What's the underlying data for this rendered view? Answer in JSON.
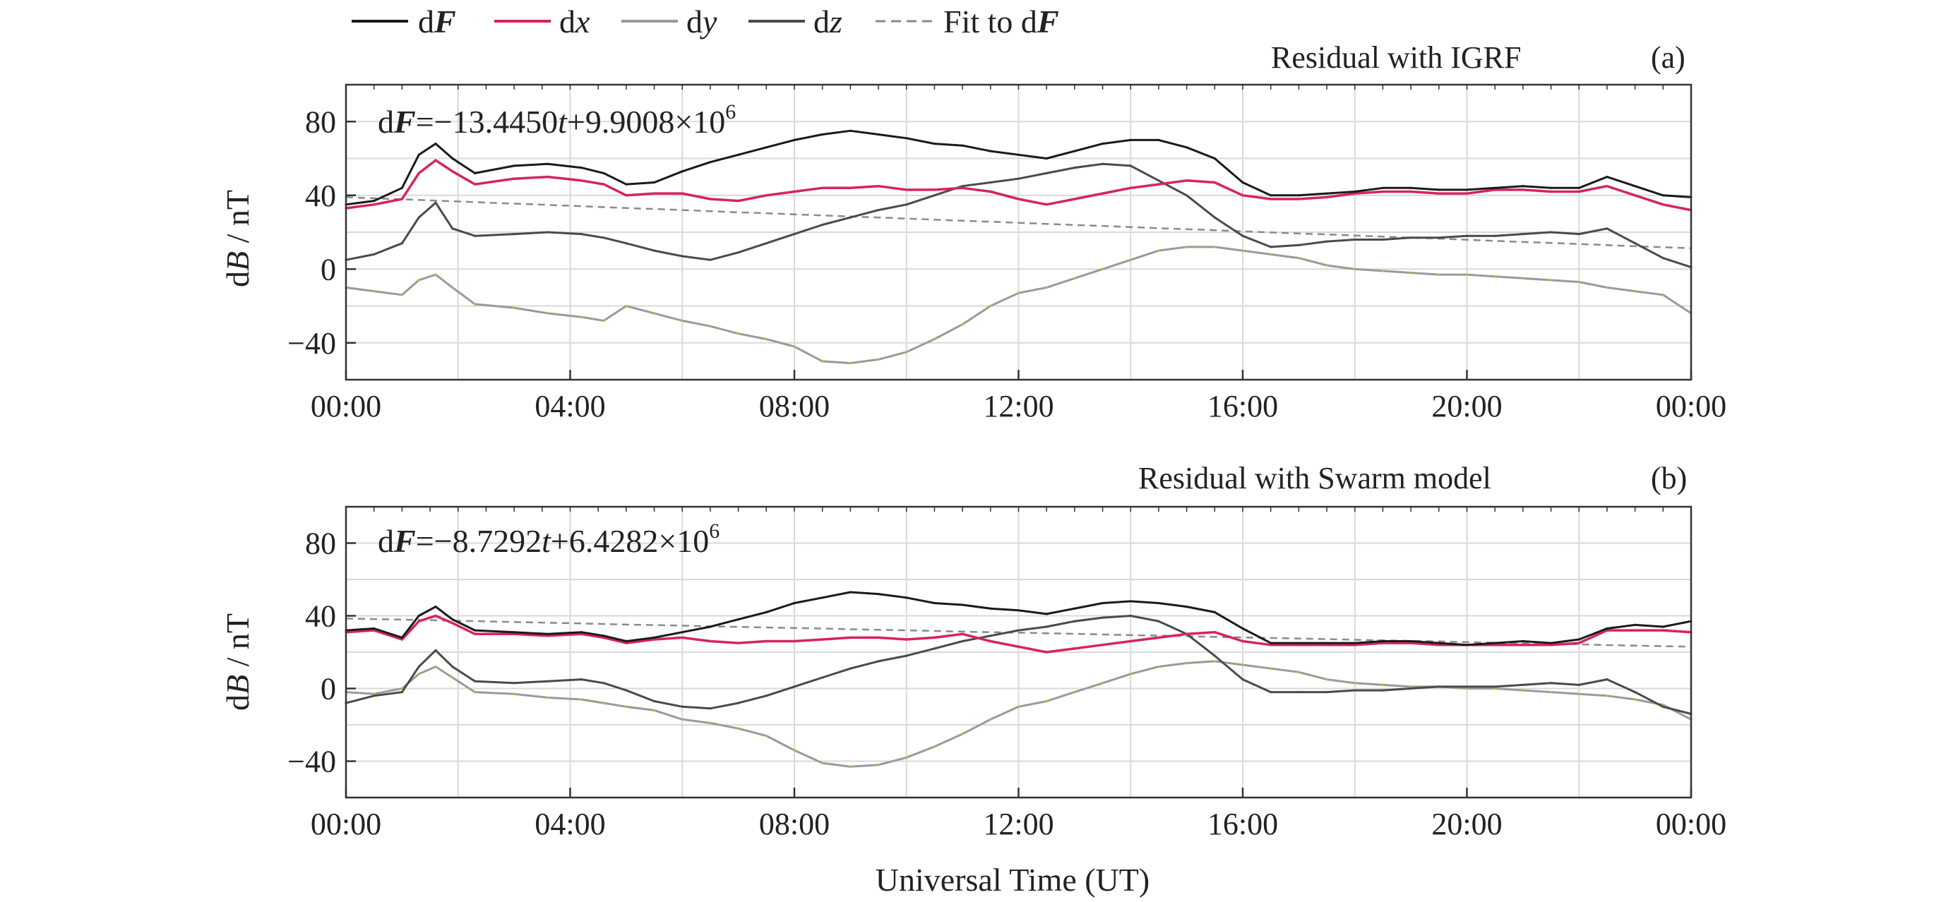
{
  "legend": {
    "dF": {
      "prefix": "d",
      "sym": "F"
    },
    "dx": {
      "prefix": "d",
      "sym": "x"
    },
    "dy": {
      "prefix": "d",
      "sym": "y"
    },
    "dz": {
      "prefix": "d",
      "sym": "z"
    },
    "fit": {
      "prefix": "Fit to d",
      "sym": "F"
    }
  },
  "colors": {
    "dF": "#1a1a1a",
    "dx": "#d6245e",
    "dy": "#9a9a9a",
    "dy_accent": "#b5bd2e",
    "dz": "#4a4a4a",
    "fit": "#8a8a8a",
    "grid": "#d9d9d9",
    "axis": "#333333"
  },
  "chart_data": [
    {
      "type": "line",
      "panel_label": "(a)",
      "title": "Residual with IGRF",
      "ylabel": {
        "prefix": "d",
        "sym": "B",
        "suffix": " / nT"
      },
      "xticks": [
        "00:00",
        "04:00",
        "08:00",
        "12:00",
        "16:00",
        "20:00",
        "00:00"
      ],
      "yticks": [
        -40,
        0,
        40,
        80
      ],
      "xlim": [
        0,
        24
      ],
      "ylim": [
        -60,
        100
      ],
      "equation": {
        "lhs_prefix": "d",
        "lhs_sym": "F",
        "op": "=",
        "c1": "−13.4450",
        "var": "t",
        "c2": "+9.9008×10",
        "exp": "6"
      },
      "x": [
        0,
        0.5,
        1.0,
        1.3,
        1.6,
        1.9,
        2.3,
        3.0,
        3.6,
        4.2,
        4.6,
        5.0,
        5.5,
        6.0,
        6.5,
        7.0,
        7.5,
        8.0,
        8.5,
        9.0,
        9.5,
        10.0,
        10.5,
        11.0,
        11.5,
        12.0,
        12.5,
        13.0,
        13.5,
        14.0,
        14.5,
        15.0,
        15.5,
        16.0,
        16.5,
        17.0,
        17.5,
        18.0,
        18.5,
        19.0,
        19.5,
        20.0,
        20.5,
        21.0,
        21.5,
        22.0,
        22.5,
        23.0,
        23.5,
        24.0
      ],
      "series": [
        {
          "key": "dF",
          "values": [
            35,
            37,
            44,
            62,
            68,
            60,
            52,
            56,
            57,
            55,
            52,
            46,
            47,
            53,
            58,
            62,
            66,
            70,
            73,
            75,
            73,
            71,
            68,
            67,
            64,
            62,
            60,
            64,
            68,
            70,
            70,
            66,
            60,
            47,
            40,
            40,
            41,
            42,
            44,
            44,
            43,
            43,
            44,
            45,
            44,
            44,
            50,
            45,
            40,
            39
          ]
        },
        {
          "key": "dx",
          "values": [
            33,
            35,
            38,
            52,
            59,
            53,
            46,
            49,
            50,
            48,
            46,
            40,
            41,
            41,
            38,
            37,
            40,
            42,
            44,
            44,
            45,
            43,
            43,
            44,
            42,
            38,
            35,
            38,
            41,
            44,
            46,
            48,
            47,
            40,
            38,
            38,
            39,
            41,
            42,
            42,
            41,
            41,
            43,
            43,
            42,
            42,
            45,
            40,
            35,
            32
          ]
        },
        {
          "key": "dy",
          "values": [
            -10,
            -12,
            -14,
            -6,
            -3,
            -10,
            -19,
            -21,
            -24,
            -26,
            -28,
            -20,
            -24,
            -28,
            -31,
            -35,
            -38,
            -42,
            -50,
            -51,
            -49,
            -45,
            -38,
            -30,
            -20,
            -13,
            -10,
            -5,
            0,
            5,
            10,
            12,
            12,
            10,
            8,
            6,
            2,
            0,
            -1,
            -2,
            -3,
            -3,
            -4,
            -5,
            -6,
            -7,
            -10,
            -12,
            -14,
            -24
          ]
        },
        {
          "key": "dz",
          "values": [
            5,
            8,
            14,
            28,
            36,
            22,
            18,
            19,
            20,
            19,
            17,
            14,
            10,
            7,
            5,
            9,
            14,
            19,
            24,
            28,
            32,
            35,
            40,
            45,
            47,
            49,
            52,
            55,
            57,
            56,
            48,
            40,
            28,
            18,
            12,
            13,
            15,
            16,
            16,
            17,
            17,
            18,
            18,
            19,
            20,
            19,
            22,
            14,
            6,
            1
          ]
        },
        {
          "key": "fit",
          "values": [
            39,
            38.4,
            37.8,
            37.5,
            37.1,
            36.8,
            36.3,
            35.5,
            34.8,
            34.1,
            33.6,
            33.1,
            32.6,
            32.0,
            31.4,
            30.8,
            30.3,
            29.7,
            29.1,
            28.5,
            28.0,
            27.4,
            26.8,
            26.2,
            25.7,
            25.1,
            24.5,
            23.9,
            23.4,
            22.8,
            22.2,
            21.6,
            21.1,
            20.5,
            19.9,
            19.3,
            18.8,
            18.2,
            17.6,
            17.0,
            16.5,
            15.9,
            15.3,
            14.7,
            14.2,
            13.6,
            13.0,
            12.4,
            11.9,
            11.3
          ]
        }
      ]
    },
    {
      "type": "line",
      "panel_label": "(b)",
      "title": "Residual with Swarm model",
      "ylabel": {
        "prefix": "d",
        "sym": "B",
        "suffix": " / nT"
      },
      "xlabel": "Universal Time (UT)",
      "xticks": [
        "00:00",
        "04:00",
        "08:00",
        "12:00",
        "16:00",
        "20:00",
        "00:00"
      ],
      "yticks": [
        -40,
        0,
        40,
        80
      ],
      "xlim": [
        0,
        24
      ],
      "ylim": [
        -60,
        100
      ],
      "equation": {
        "lhs_prefix": "d",
        "lhs_sym": "F",
        "op": "=",
        "c1": "−8.7292",
        "var": "t",
        "c2": "+6.4282×10",
        "exp": "6"
      },
      "x": [
        0,
        0.5,
        1.0,
        1.3,
        1.6,
        1.9,
        2.3,
        3.0,
        3.6,
        4.2,
        4.6,
        5.0,
        5.5,
        6.0,
        6.5,
        7.0,
        7.5,
        8.0,
        8.5,
        9.0,
        9.5,
        10.0,
        10.5,
        11.0,
        11.5,
        12.0,
        12.5,
        13.0,
        13.5,
        14.0,
        14.5,
        15.0,
        15.5,
        16.0,
        16.5,
        17.0,
        17.5,
        18.0,
        18.5,
        19.0,
        19.5,
        20.0,
        20.5,
        21.0,
        21.5,
        22.0,
        22.5,
        23.0,
        23.5,
        24.0
      ],
      "series": [
        {
          "key": "dF",
          "values": [
            32,
            33,
            28,
            40,
            45,
            38,
            32,
            31,
            30,
            31,
            29,
            26,
            28,
            31,
            34,
            38,
            42,
            47,
            50,
            53,
            52,
            50,
            47,
            46,
            44,
            43,
            41,
            44,
            47,
            48,
            47,
            45,
            42,
            33,
            25,
            25,
            25,
            25,
            26,
            26,
            25,
            24,
            25,
            26,
            25,
            27,
            33,
            35,
            34,
            37
          ]
        },
        {
          "key": "dx",
          "values": [
            31,
            32,
            27,
            37,
            40,
            36,
            30,
            30,
            29,
            30,
            28,
            25,
            27,
            28,
            26,
            25,
            26,
            26,
            27,
            28,
            28,
            27,
            28,
            30,
            26,
            23,
            20,
            22,
            24,
            26,
            28,
            30,
            31,
            26,
            24,
            24,
            24,
            24,
            25,
            25,
            24,
            24,
            24,
            24,
            24,
            25,
            32,
            32,
            32,
            31
          ]
        },
        {
          "key": "dy",
          "values": [
            -2,
            -3,
            0,
            8,
            12,
            6,
            -2,
            -3,
            -5,
            -6,
            -8,
            -10,
            -12,
            -17,
            -19,
            -22,
            -26,
            -34,
            -41,
            -43,
            -42,
            -38,
            -32,
            -25,
            -17,
            -10,
            -7,
            -2,
            3,
            8,
            12,
            14,
            15,
            13,
            11,
            9,
            5,
            3,
            2,
            1,
            1,
            0,
            0,
            -1,
            -2,
            -3,
            -4,
            -6,
            -9,
            -17
          ]
        },
        {
          "key": "dz",
          "values": [
            -8,
            -4,
            -2,
            12,
            21,
            12,
            4,
            3,
            4,
            5,
            3,
            -1,
            -7,
            -10,
            -11,
            -8,
            -4,
            1,
            6,
            11,
            15,
            18,
            22,
            26,
            29,
            32,
            34,
            37,
            39,
            40,
            37,
            30,
            18,
            5,
            -2,
            -2,
            -2,
            -1,
            -1,
            0,
            1,
            1,
            1,
            2,
            3,
            2,
            5,
            -2,
            -10,
            -14
          ]
        },
        {
          "key": "fit",
          "values": [
            38.5,
            38.2,
            37.9,
            37.7,
            37.5,
            37.3,
            37.1,
            36.6,
            36.2,
            35.8,
            35.5,
            35.2,
            34.9,
            34.6,
            34.2,
            33.9,
            33.6,
            33.3,
            33.0,
            32.6,
            32.3,
            32.0,
            31.7,
            31.3,
            31.0,
            30.7,
            30.4,
            30.1,
            29.7,
            29.4,
            29.1,
            28.8,
            28.4,
            28.1,
            27.8,
            27.5,
            27.2,
            26.8,
            26.5,
            26.2,
            25.9,
            25.5,
            25.2,
            24.9,
            24.6,
            24.3,
            23.9,
            23.6,
            23.3,
            23.0
          ]
        }
      ]
    }
  ]
}
